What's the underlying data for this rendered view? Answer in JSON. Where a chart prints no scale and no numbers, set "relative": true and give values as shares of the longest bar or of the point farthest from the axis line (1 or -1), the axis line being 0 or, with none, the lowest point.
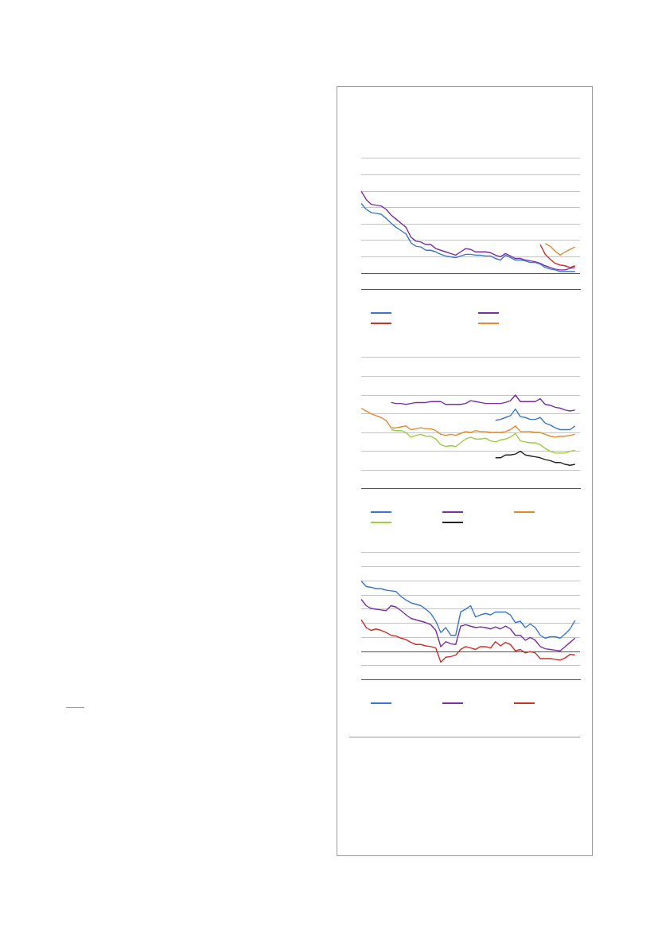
{
  "chart_data": [
    {
      "type": "line",
      "relative": true,
      "grid": "y",
      "marker": "none",
      "line_style": "solid",
      "categories": [
        null,
        null,
        null,
        null,
        null,
        null,
        null,
        null,
        null,
        null,
        null,
        null,
        null,
        null,
        null,
        null,
        null,
        null,
        null,
        null,
        null,
        null,
        null,
        null,
        null,
        null,
        null,
        null,
        null,
        null,
        null,
        null,
        null,
        null,
        null,
        null,
        null,
        null,
        null,
        null,
        null,
        null,
        null,
        null,
        null
      ],
      "series": [
        {
          "color": "#3a78c9",
          "values": [
            0.85,
            0.78,
            0.74,
            0.73,
            0.72,
            0.67,
            0.61,
            0.56,
            0.52,
            0.48,
            0.37,
            0.33,
            0.32,
            0.28,
            0.28,
            0.26,
            0.23,
            0.21,
            0.2,
            0.19,
            0.21,
            0.23,
            0.23,
            0.22,
            0.22,
            0.21,
            0.21,
            0.18,
            0.16,
            0.22,
            0.19,
            0.16,
            0.16,
            0.15,
            0.13,
            0.13,
            0.11,
            0.07,
            0.05,
            0.04,
            0.02,
            0.02,
            0.02,
            0.02,
            null
          ]
        },
        {
          "color": "#7b2fa0",
          "values": [
            1,
            0.9,
            0.84,
            0.83,
            0.82,
            0.78,
            0.71,
            0.66,
            0.61,
            0.56,
            0.44,
            0.39,
            0.38,
            0.35,
            0.35,
            0.3,
            0.28,
            0.26,
            0.24,
            0.22,
            0.26,
            0.3,
            0.29,
            0.26,
            0.26,
            0.26,
            0.25,
            0.22,
            0.2,
            0.24,
            0.21,
            0.18,
            0.18,
            0.16,
            0.15,
            0.14,
            0.12,
            0.09,
            0.07,
            0.05,
            0.04,
            0.04,
            0.06,
            0.07,
            null
          ]
        },
        {
          "color": "#c8302a",
          "values": [
            null,
            null,
            null,
            null,
            null,
            null,
            null,
            null,
            null,
            null,
            null,
            null,
            null,
            null,
            null,
            null,
            null,
            null,
            null,
            null,
            null,
            null,
            null,
            null,
            null,
            null,
            null,
            null,
            null,
            null,
            null,
            null,
            null,
            null,
            null,
            null,
            0.35,
            0.23,
            0.17,
            0.12,
            0.1,
            0.09,
            0.07,
            0.09,
            null
          ]
        },
        {
          "color": "#e38a2e",
          "values": [
            null,
            null,
            null,
            null,
            null,
            null,
            null,
            null,
            null,
            null,
            null,
            null,
            null,
            null,
            null,
            null,
            null,
            null,
            null,
            null,
            null,
            null,
            null,
            null,
            null,
            null,
            null,
            null,
            null,
            null,
            null,
            null,
            null,
            null,
            null,
            null,
            null,
            0.36,
            0.33,
            0.27,
            0.22,
            0.26,
            0.29,
            0.32,
            null
          ]
        }
      ]
    },
    {
      "type": "line",
      "relative": true,
      "grid": "y",
      "marker": "none",
      "line_style": "solid",
      "categories": [
        null,
        null,
        null,
        null,
        null,
        null,
        null,
        null,
        null,
        null,
        null,
        null,
        null,
        null,
        null,
        null,
        null,
        null,
        null,
        null,
        null,
        null,
        null,
        null,
        null,
        null,
        null,
        null,
        null,
        null,
        null,
        null,
        null,
        null,
        null,
        null,
        null,
        null,
        null,
        null,
        null,
        null,
        null,
        null,
        null
      ],
      "series": [
        {
          "color": "#3a78c9",
          "values": [
            null,
            null,
            null,
            null,
            null,
            null,
            null,
            null,
            null,
            null,
            null,
            null,
            null,
            null,
            null,
            null,
            null,
            null,
            null,
            null,
            null,
            null,
            null,
            null,
            null,
            null,
            null,
            0.73,
            0.74,
            0.76,
            0.78,
            0.85,
            0.77,
            0.76,
            0.74,
            0.74,
            0.76,
            0.7,
            0.68,
            0.65,
            0.63,
            0.63,
            0.63,
            0.67,
            null
          ]
        },
        {
          "color": "#7b2fa0",
          "values": [
            null,
            null,
            null,
            null,
            null,
            null,
            0.92,
            0.91,
            0.91,
            0.9,
            0.91,
            0.92,
            0.92,
            0.92,
            0.93,
            0.93,
            0.93,
            0.9,
            0.9,
            0.9,
            0.9,
            0.91,
            0.94,
            0.93,
            0.92,
            0.91,
            0.91,
            0.91,
            0.91,
            0.92,
            0.94,
            1,
            0.93,
            0.93,
            0.93,
            0.93,
            0.96,
            0.9,
            0.89,
            0.87,
            0.86,
            0.84,
            0.83,
            0.84,
            null
          ]
        },
        {
          "color": "#e38a2e",
          "values": [
            0.86,
            0.83,
            0.8,
            0.78,
            0.76,
            0.73,
            0.65,
            0.65,
            0.66,
            0.67,
            0.63,
            0.64,
            0.65,
            0.64,
            0.64,
            0.62,
            0.58,
            0.57,
            0.58,
            0.57,
            0.59,
            0.61,
            0.6,
            0.62,
            0.61,
            0.61,
            0.6,
            0.6,
            0.6,
            0.61,
            0.63,
            0.67,
            0.61,
            0.61,
            0.61,
            0.6,
            0.6,
            0.58,
            0.56,
            0.55,
            0.56,
            0.56,
            0.57,
            0.58,
            null
          ]
        },
        {
          "color": "#9acd3f",
          "values": [
            null,
            null,
            null,
            null,
            null,
            null,
            0.63,
            0.62,
            0.62,
            0.6,
            0.55,
            0.57,
            0.58,
            0.56,
            0.56,
            0.53,
            0.47,
            0.45,
            0.46,
            0.45,
            0.49,
            0.53,
            0.55,
            0.53,
            0.53,
            0.54,
            0.51,
            0.5,
            0.52,
            0.53,
            0.55,
            0.59,
            0.51,
            0.5,
            0.49,
            0.49,
            0.47,
            0.43,
            0.4,
            0.38,
            0.38,
            0.38,
            0.4,
            0.41,
            null
          ]
        },
        {
          "color": "#222222",
          "values": [
            null,
            null,
            null,
            null,
            null,
            null,
            null,
            null,
            null,
            null,
            null,
            null,
            null,
            null,
            null,
            null,
            null,
            null,
            null,
            null,
            null,
            null,
            null,
            null,
            null,
            null,
            null,
            0.33,
            0.33,
            0.36,
            0.36,
            0.37,
            0.4,
            0.36,
            0.35,
            0.34,
            0.33,
            0.31,
            0.3,
            0.28,
            0.28,
            0.26,
            0.25,
            0.26,
            null
          ]
        }
      ]
    },
    {
      "type": "line",
      "relative": true,
      "grid": "y",
      "marker": "none",
      "line_style": "solid",
      "categories": [
        null,
        null,
        null,
        null,
        null,
        null,
        null,
        null,
        null,
        null,
        null,
        null,
        null,
        null,
        null,
        null,
        null,
        null,
        null,
        null,
        null,
        null,
        null,
        null,
        null,
        null,
        null,
        null,
        null,
        null,
        null,
        null,
        null,
        null,
        null,
        null,
        null,
        null,
        null,
        null,
        null,
        null,
        null,
        null,
        null
      ],
      "series": [
        {
          "color": "#3a78c9",
          "values": [
            1,
            0.92,
            0.91,
            0.89,
            0.89,
            0.87,
            0.86,
            0.85,
            0.78,
            0.73,
            0.69,
            0.67,
            0.65,
            0.6,
            0.54,
            0.43,
            0.27,
            0.34,
            0.23,
            0.23,
            0.56,
            0.6,
            0.65,
            0.49,
            0.52,
            0.54,
            0.52,
            0.56,
            0.56,
            0.56,
            0.52,
            0.41,
            0.43,
            0.34,
            0.39,
            0.34,
            0.23,
            0.19,
            0.21,
            0.21,
            0.19,
            0.25,
            0.32,
            0.44,
            null
          ]
        },
        {
          "color": "#7b2fa0",
          "values": [
            0.74,
            0.65,
            0.61,
            0.6,
            0.59,
            0.58,
            0.65,
            0.63,
            0.58,
            0.52,
            0.47,
            0.45,
            0.43,
            0.41,
            0.38,
            0.3,
            0.07,
            0.14,
            0.11,
            0.1,
            0.36,
            0.38,
            0.36,
            0.34,
            0.35,
            0.34,
            0.32,
            0.35,
            0.32,
            0.36,
            0.32,
            0.23,
            0.23,
            0.16,
            0.2,
            0.16,
            0.07,
            0.04,
            0.03,
            0.02,
            0.01,
            0.07,
            0.13,
            0.19,
            null
          ]
        },
        {
          "color": "#c8302a",
          "values": [
            0.45,
            0.34,
            0.3,
            0.32,
            0.3,
            0.27,
            0.23,
            0.22,
            0.19,
            0.17,
            0.13,
            0.1,
            0.1,
            0.08,
            0.07,
            0.05,
            -0.15,
            -0.08,
            -0.07,
            -0.05,
            0.03,
            0.07,
            0.05,
            0.03,
            0.07,
            0.07,
            0.05,
            0.14,
            0.08,
            0.13,
            0.1,
            0.01,
            0.03,
            -0.02,
            0,
            -0.02,
            -0.1,
            -0.1,
            -0.1,
            -0.11,
            -0.12,
            -0.09,
            -0.04,
            -0.05,
            null
          ]
        }
      ]
    }
  ]
}
